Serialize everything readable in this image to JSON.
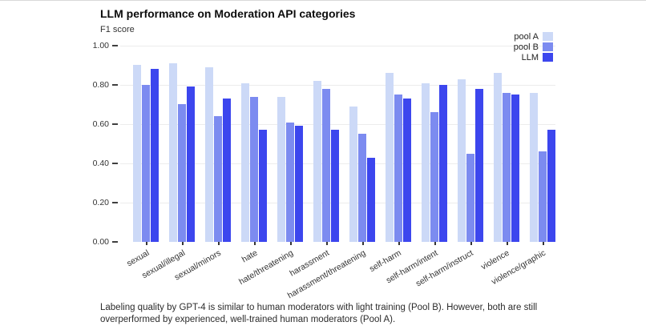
{
  "page": {
    "title": "LLM performance on Moderation API categories",
    "subtitle": "F1 score",
    "caption": "Labeling quality by GPT-4 is similar to human moderators with light training (Pool B). However, both are still overperformed by experienced, well-trained human moderators (Pool A)."
  },
  "chart_data": {
    "type": "bar",
    "title": "LLM performance on Moderation API categories",
    "ylabel": "F1 score",
    "xlabel": "",
    "ylim": [
      0,
      1.0
    ],
    "yticks": [
      0.0,
      0.2,
      0.4,
      0.6,
      0.8,
      1.0
    ],
    "grid": true,
    "legend_position": "top-right",
    "categories": [
      "sexual",
      "sexual/illegal",
      "sexual/minors",
      "hate",
      "hate/threatening",
      "harassment",
      "harassment/threatening",
      "self-harm",
      "self-harm/intent",
      "self-harm/instruct",
      "violence",
      "violence/graphic"
    ],
    "series": [
      {
        "name": "pool A",
        "color": "#ccd9f7",
        "values": [
          0.9,
          0.91,
          0.89,
          0.81,
          0.74,
          0.82,
          0.69,
          0.86,
          0.81,
          0.83,
          0.86,
          0.76
        ]
      },
      {
        "name": "pool B",
        "color": "#7c8bf0",
        "values": [
          0.8,
          0.7,
          0.64,
          0.74,
          0.61,
          0.78,
          0.55,
          0.75,
          0.66,
          0.45,
          0.76,
          0.46
        ]
      },
      {
        "name": "LLM",
        "color": "#3c46ee",
        "values": [
          0.88,
          0.79,
          0.73,
          0.57,
          0.59,
          0.57,
          0.43,
          0.73,
          0.8,
          0.78,
          0.75,
          0.57
        ]
      }
    ]
  }
}
